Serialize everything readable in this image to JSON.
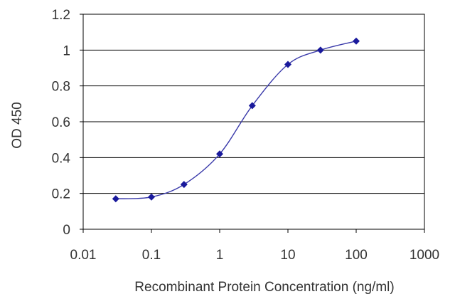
{
  "chart_data": {
    "type": "scatter",
    "title": "",
    "xlabel": "Recombinant Protein Concentration (ng/ml)",
    "ylabel": "OD 450",
    "x_scale": "log",
    "xlim": [
      0.01,
      1000
    ],
    "ylim": [
      0,
      1.2
    ],
    "grid": "horizontal",
    "x_ticks": [
      0.01,
      0.1,
      1,
      10,
      100,
      1000
    ],
    "x_tick_labels": [
      "0.01",
      "0.1",
      "1",
      "10",
      "100",
      "1000"
    ],
    "y_ticks": [
      0,
      0.2,
      0.4,
      0.6,
      0.8,
      1,
      1.2
    ],
    "y_tick_labels": [
      "0",
      "0.2",
      "0.4",
      "0.6",
      "0.8",
      "1",
      "1.2"
    ],
    "series": [
      {
        "x": [
          0.03,
          0.1,
          0.3,
          1,
          3,
          10,
          30,
          100
        ],
        "y": [
          0.17,
          0.18,
          0.25,
          0.42,
          0.69,
          0.92,
          1.0,
          1.05
        ],
        "marker": "diamond",
        "color": "#1a1a9c",
        "line_color": "#3a3aaa",
        "fit": "smooth curve"
      }
    ]
  }
}
